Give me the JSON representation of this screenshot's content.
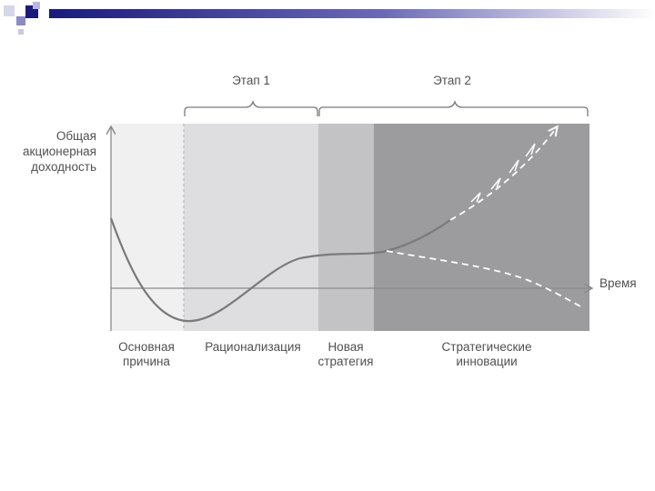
{
  "y_axis_label": [
    "Общая",
    "акционерная",
    "доходность"
  ],
  "x_axis_label": "Время",
  "stages": [
    {
      "label": "Этап 1"
    },
    {
      "label": "Этап 2"
    }
  ],
  "phases": [
    {
      "lines": [
        "Основная",
        "причина"
      ]
    },
    {
      "lines": [
        "Рационализация"
      ]
    },
    {
      "lines": [
        "Новая",
        "стратегия"
      ]
    },
    {
      "lines": [
        "Стратегические",
        "инновации"
      ]
    }
  ],
  "colors": {
    "phase_fills": [
      "#f0f0f0",
      "#dedee0",
      "#c3c3c5",
      "#9c9c9e"
    ],
    "curve": "#7a7a7a",
    "dashed_curve": "#ffffff",
    "axis": "#8a8a8a",
    "banner_dark": "#1a1a7a",
    "banner_light": "#ffffff"
  }
}
